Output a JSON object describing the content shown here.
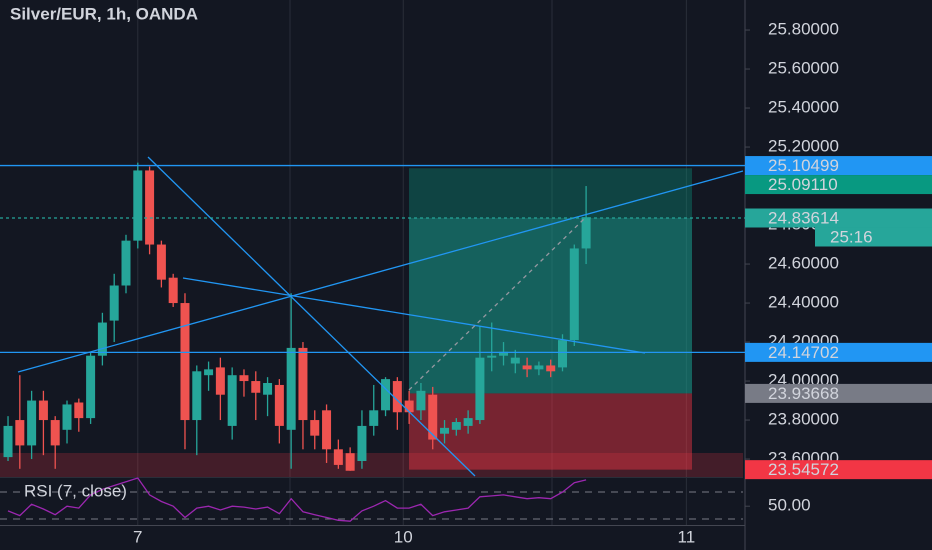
{
  "chart_data": {
    "type": "candlestick",
    "title": "Silver/EUR, 1h, OANDA",
    "up_color": "#26a69a",
    "down_color": "#ef5350",
    "x": [
      0,
      1,
      2,
      3,
      4,
      5,
      6,
      7,
      8,
      9,
      10,
      11,
      12,
      13,
      14,
      15,
      16,
      17,
      18,
      19,
      20,
      21,
      22,
      23,
      24,
      25,
      26,
      27,
      28,
      29,
      30,
      31,
      32,
      33,
      34,
      35,
      36,
      37,
      38,
      39,
      40,
      41,
      42,
      43,
      44,
      45,
      46,
      47,
      48,
      49
    ],
    "open": [
      23.61,
      23.8,
      23.67,
      23.9,
      23.8,
      23.75,
      23.89,
      23.81,
      24.13,
      24.31,
      24.49,
      24.72,
      25.08,
      24.7,
      24.53,
      24.4,
      23.8,
      24.03,
      24.07,
      23.77,
      24.03,
      24.0,
      23.93,
      23.98,
      23.75,
      24.17,
      23.8,
      23.85,
      23.65,
      23.63,
      23.59,
      23.77,
      23.85,
      24.0,
      23.9,
      23.85,
      23.93,
      23.73,
      23.75,
      23.77,
      23.8,
      24.12,
      24.13,
      24.09,
      24.08,
      24.06,
      24.08,
      24.07,
      24.21,
      24.68
    ],
    "high": [
      23.82,
      24.03,
      23.95,
      23.95,
      23.82,
      23.9,
      23.91,
      24.15,
      24.35,
      24.55,
      24.75,
      25.12,
      25.1,
      24.72,
      24.55,
      24.45,
      24.08,
      24.1,
      24.12,
      24.07,
      24.06,
      24.05,
      24.02,
      24.01,
      24.45,
      24.2,
      23.85,
      23.88,
      23.7,
      23.66,
      23.85,
      23.98,
      24.02,
      24.02,
      23.95,
      23.99,
      23.97,
      23.8,
      23.81,
      23.85,
      24.28,
      24.3,
      24.2,
      24.16,
      24.12,
      24.1,
      24.11,
      24.24,
      24.7,
      25.0
    ],
    "low": [
      23.59,
      23.55,
      23.6,
      23.62,
      23.55,
      23.68,
      23.74,
      23.78,
      24.08,
      24.2,
      24.45,
      24.68,
      24.65,
      24.48,
      24.38,
      23.65,
      23.62,
      23.95,
      23.8,
      23.7,
      23.92,
      23.8,
      23.82,
      23.68,
      23.55,
      23.65,
      23.65,
      23.58,
      23.55,
      23.54,
      23.55,
      23.72,
      23.82,
      23.75,
      23.78,
      23.8,
      23.65,
      23.68,
      23.72,
      23.73,
      23.78,
      24.05,
      24.08,
      24.04,
      24.02,
      24.03,
      24.02,
      24.05,
      24.18,
      24.6
    ],
    "close": [
      23.77,
      23.67,
      23.9,
      23.8,
      23.67,
      23.88,
      23.81,
      24.13,
      24.3,
      24.49,
      24.72,
      25.08,
      24.7,
      24.52,
      24.4,
      23.8,
      24.05,
      24.06,
      23.93,
      24.03,
      24.0,
      23.94,
      23.99,
      23.77,
      24.17,
      23.8,
      23.72,
      23.65,
      23.57,
      23.54,
      23.77,
      23.85,
      24.01,
      23.84,
      23.84,
      23.95,
      23.7,
      23.76,
      23.79,
      23.81,
      24.12,
      24.13,
      24.15,
      24.12,
      24.06,
      24.08,
      24.05,
      24.21,
      24.68,
      24.84
    ],
    "xlim": [
      -0.68,
      62.3
    ],
    "xticks": [
      {
        "value": 11,
        "label": "7"
      },
      {
        "value": 33.5,
        "label": "10"
      },
      {
        "value": 57.5,
        "label": "11"
      }
    ],
    "ylim": [
      23.508,
      25.954
    ],
    "yticks": [
      {
        "value": 23.6,
        "label": "23.60000"
      },
      {
        "value": 23.8,
        "label": "23.80000"
      },
      {
        "value": 24.0,
        "label": "24.00000"
      },
      {
        "value": 24.2,
        "label": "24.20000"
      },
      {
        "value": 24.4,
        "label": "24.40000"
      },
      {
        "value": 24.6,
        "label": "24.60000"
      },
      {
        "value": 24.8,
        "label": "24.80000"
      },
      {
        "value": 25.0,
        "label": "25.00000"
      },
      {
        "value": 25.2,
        "label": "25.20000"
      },
      {
        "value": 25.4,
        "label": "25.40000"
      },
      {
        "value": 25.6,
        "label": "25.60000"
      },
      {
        "value": 25.8,
        "label": "25.80000"
      }
    ],
    "levels": [
      {
        "value": 25.10499,
        "label": "25.10499",
        "color": "#2196f3",
        "line": "solid"
      },
      {
        "value": 25.0911,
        "label": "25.09110",
        "color": "#089981"
      },
      {
        "value": 24.83614,
        "label": "24.83614",
        "color": "#26a69a",
        "line": "dashed"
      },
      {
        "value": 24.14702,
        "label": "24.14702",
        "color": "#2196f3",
        "line": "solid"
      },
      {
        "value": 23.93668,
        "label": "23.93668",
        "color": "#787b86"
      },
      {
        "value": 23.54572,
        "label": "23.54572",
        "color": "#f23645"
      }
    ],
    "countdown": "25:16",
    "rsi": {
      "title": "RSI (7, close)",
      "color": "#9c27b0",
      "ylim": [
        30,
        80
      ],
      "yticks": [
        {
          "value": 50,
          "label": "50.00"
        }
      ],
      "values": [
        45,
        40,
        52,
        47,
        41,
        50,
        48,
        62,
        68,
        72,
        76,
        80,
        62,
        55,
        50,
        38,
        48,
        50,
        46,
        50,
        49,
        47,
        49,
        42,
        58,
        44,
        41,
        38,
        35,
        34,
        45,
        50,
        56,
        48,
        48,
        52,
        40,
        44,
        46,
        48,
        60,
        61,
        62,
        60,
        58,
        59,
        58,
        65,
        75,
        78
      ]
    }
  }
}
